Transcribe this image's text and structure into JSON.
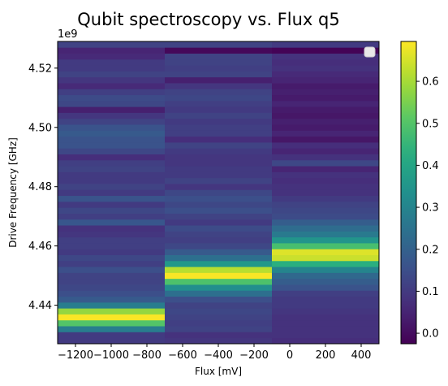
{
  "chart_data": {
    "type": "heatmap",
    "title": "Qubit spectroscopy vs. Flux q5",
    "xlabel": "Flux [mV]",
    "ylabel": "Drive Frequency [GHz]",
    "y_offset_label": "1e9",
    "colormap": "viridis",
    "xlim": [
      -1300,
      500
    ],
    "ylim": [
      4.427,
      4.529
    ],
    "x_ticks": [
      -1200,
      -1000,
      -800,
      -600,
      -400,
      -200,
      0,
      200,
      400
    ],
    "x_tick_labels": [
      "−1200",
      "−1000",
      "−800",
      "−600",
      "−400",
      "−200",
      "0",
      "200",
      "400"
    ],
    "y_ticks": [
      4.44,
      4.46,
      4.48,
      4.5,
      4.52
    ],
    "y_tick_labels": [
      "4.44",
      "4.46",
      "4.48",
      "4.50",
      "4.52"
    ],
    "colorbar": {
      "range": [
        -0.025,
        0.695
      ],
      "ticks": [
        0.0,
        0.1,
        0.2,
        0.3,
        0.4,
        0.5,
        0.6
      ],
      "tick_labels": [
        "0.0",
        "0.1",
        "0.2",
        "0.3",
        "0.4",
        "0.5",
        "0.6"
      ]
    },
    "legend": "top-right (empty)",
    "x_columns": [
      {
        "x_from": -1300,
        "x_to": -700
      },
      {
        "x_from": -700,
        "x_to": -100
      },
      {
        "x_from": -100,
        "x_to": 500
      }
    ],
    "y_start": 4.427,
    "y_step": 0.002,
    "values": [
      [
        0.1,
        0.1,
        0.28,
        0.5,
        0.69,
        0.58,
        0.28,
        0.18,
        0.15,
        0.13,
        0.12,
        0.12,
        0.15,
        0.11,
        0.13,
        0.1,
        0.11,
        0.11,
        0.09,
        0.08,
        0.17,
        0.11,
        0.13,
        0.1,
        0.16,
        0.1,
        0.12,
        0.1,
        0.1,
        0.12,
        0.11,
        0.07,
        0.13,
        0.16,
        0.16,
        0.18,
        0.16,
        0.12,
        0.09,
        0.04,
        0.13,
        0.14,
        0.11,
        0.06,
        0.09,
        0.12,
        0.1,
        0.1,
        0.06,
        0.05,
        0.12
      ],
      [
        0.09,
        0.08,
        0.12,
        0.11,
        0.12,
        0.13,
        0.12,
        0.15,
        0.24,
        0.33,
        0.49,
        0.69,
        0.62,
        0.36,
        0.24,
        0.18,
        0.13,
        0.11,
        0.12,
        0.14,
        0.1,
        0.12,
        0.15,
        0.13,
        0.15,
        0.13,
        0.09,
        0.12,
        0.1,
        0.1,
        0.09,
        0.09,
        0.1,
        0.12,
        0.07,
        0.11,
        0.11,
        0.1,
        0.12,
        0.1,
        0.11,
        0.13,
        0.12,
        0.09,
        0.04,
        0.12,
        0.11,
        0.12,
        0.12,
        -0.01,
        0.12
      ],
      [
        0.07,
        0.08,
        0.08,
        0.08,
        0.08,
        0.09,
        0.1,
        0.1,
        0.11,
        0.16,
        0.19,
        0.22,
        0.3,
        0.43,
        0.64,
        0.66,
        0.48,
        0.35,
        0.27,
        0.23,
        0.19,
        0.14,
        0.13,
        0.12,
        0.1,
        0.08,
        0.08,
        0.07,
        0.08,
        0.05,
        0.13,
        0.08,
        0.05,
        0.07,
        0.02,
        0.05,
        0.03,
        0.04,
        0.02,
        0.03,
        0.05,
        0.03,
        0.04,
        0.03,
        0.05,
        0.06,
        0.08,
        0.07,
        0.08,
        -0.02,
        0.1
      ]
    ]
  }
}
